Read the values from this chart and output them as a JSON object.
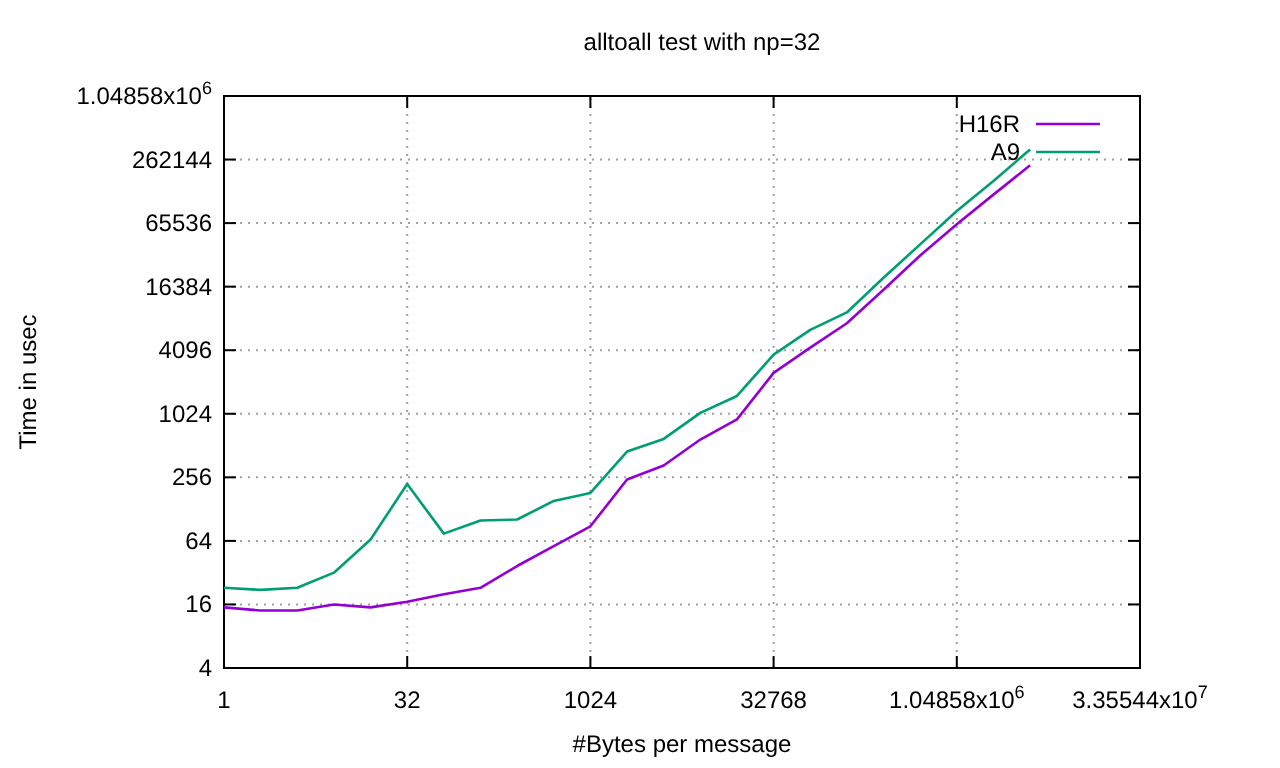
{
  "chart_data": {
    "type": "line",
    "title": "alltoall test with np=32",
    "xlabel": "#Bytes per message",
    "ylabel": "Time in usec",
    "x": [
      1,
      2,
      4,
      8,
      16,
      32,
      64,
      128,
      256,
      512,
      1024,
      2048,
      4096,
      8192,
      16384,
      32768,
      65536,
      131072,
      262144,
      524288,
      1048576,
      2097152,
      4194304
    ],
    "series": [
      {
        "name": "H16R",
        "color": "#9400d3",
        "values": [
          15,
          14,
          14,
          16,
          15,
          17,
          20,
          23,
          37,
          57,
          88,
          244,
          331,
          584,
          906,
          2500,
          4330,
          7380,
          15300,
          32300,
          63800,
          122000,
          231000
        ]
      },
      {
        "name": "A9",
        "color": "#009e73",
        "values": [
          23,
          22,
          23,
          32,
          66,
          221,
          75,
          100,
          102,
          153,
          182,
          449,
          592,
          1045,
          1510,
          3720,
          6380,
          9340,
          19900,
          41200,
          85300,
          164000,
          327000
        ]
      }
    ],
    "log": "xy",
    "xlim": [
      1,
      33554432
    ],
    "ylim": [
      4,
      1048576
    ],
    "xticks": [
      1,
      32,
      1024,
      32768,
      {
        "value": 1048576,
        "label": "1.04858x10$^{6}$"
      },
      {
        "value": 33554432,
        "label": "3.35544x10$^{7}$"
      }
    ],
    "yticks": [
      4,
      16,
      64,
      256,
      1024,
      4096,
      16384,
      65536,
      262144,
      {
        "value": 1048576,
        "label": "1.04858x10$^{6}$"
      }
    ],
    "grid": true,
    "legend": "top right",
    "line_style": "solid",
    "marker": "none"
  }
}
